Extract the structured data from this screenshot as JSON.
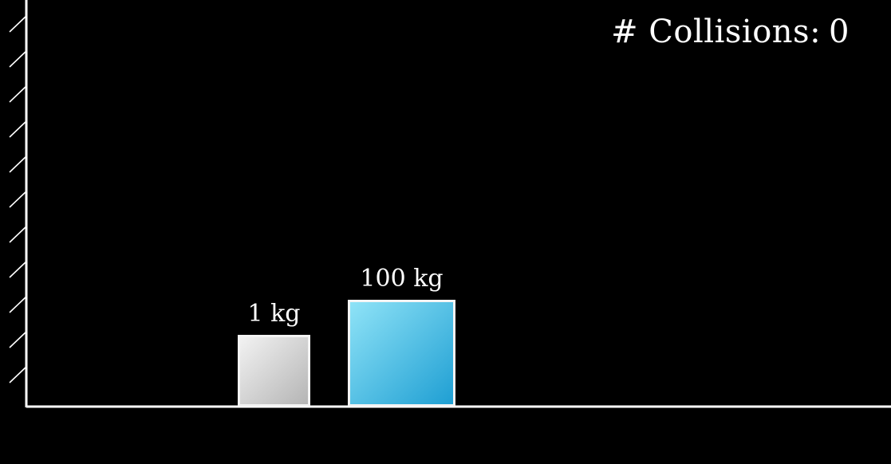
{
  "counter": {
    "label": "# Collisions:",
    "value": "0"
  },
  "blocks": [
    {
      "mass_label": "1 kg",
      "color_top": "#f2f2f2",
      "color_bottom": "#b5b5b5"
    },
    {
      "mass_label": "100 kg",
      "color_top": "#8fe3f7",
      "color_bottom": "#1f9fd3"
    }
  ],
  "colors": {
    "background": "#000000",
    "lines": "#ffffff"
  }
}
